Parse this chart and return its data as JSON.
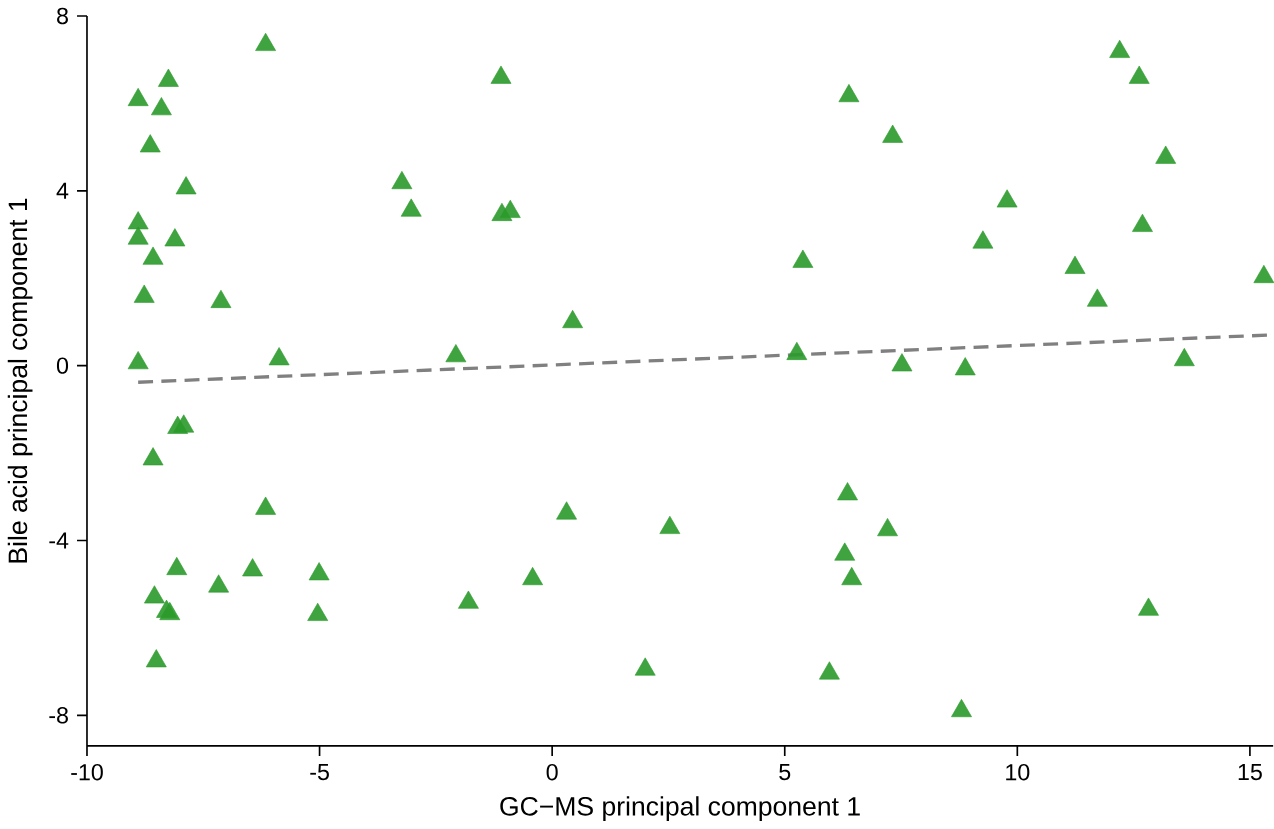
{
  "chart_data": {
    "type": "scatter",
    "xlabel": "GC−MS principal component 1",
    "ylabel": "Bile acid principal component 1",
    "xlim": [
      -10,
      15.5
    ],
    "ylim": [
      -8.7,
      8
    ],
    "xticks": [
      -10,
      -5,
      0,
      5,
      10,
      15
    ],
    "yticks": [
      -8,
      -4,
      0,
      4,
      8
    ],
    "grid": false,
    "series": [
      {
        "marker": "triangle",
        "color": "#2a9a2a",
        "x": [
          -8.9,
          -6.16,
          -8.25,
          -8.4,
          -8.64,
          -7.87,
          -8.9,
          -8.9,
          -8.11,
          -8.58,
          -8.77,
          -7.12,
          -8.9,
          -5.87,
          -8.05,
          -7.92,
          -8.58,
          -6.16,
          -8.07,
          -6.44,
          -7.17,
          -5.01,
          -5.04,
          -8.55,
          -8.29,
          -8.22,
          -8.51,
          -3.23,
          -3.03,
          -1.1,
          -1.08,
          -0.9,
          -2.07,
          0.44,
          0.31,
          -0.42,
          -1.8,
          2.53,
          2.0,
          5.39,
          5.26,
          6.38,
          7.32,
          7.52,
          6.35,
          6.29,
          6.44,
          7.21,
          5.96,
          8.8,
          8.88,
          9.26,
          9.78,
          11.24,
          11.72,
          12.2,
          12.62,
          13.19,
          12.69,
          12.82,
          13.59,
          15.3
        ],
        "values": [
          6.08,
          7.34,
          6.52,
          5.87,
          5.02,
          4.06,
          3.26,
          2.91,
          2.87,
          2.45,
          1.58,
          1.46,
          0.06,
          0.15,
          -1.42,
          -1.39,
          -2.14,
          -3.27,
          -4.65,
          -4.68,
          -5.05,
          -4.77,
          -5.7,
          -5.3,
          -5.63,
          -5.68,
          -6.76,
          4.18,
          3.55,
          6.59,
          3.45,
          3.52,
          0.22,
          1.0,
          -3.38,
          -4.88,
          -5.42,
          -3.71,
          -6.95,
          2.38,
          0.27,
          6.17,
          5.24,
          0.01,
          -2.94,
          -4.32,
          -4.88,
          -3.76,
          -7.04,
          -7.9,
          -0.08,
          2.82,
          3.76,
          2.24,
          1.49,
          7.18,
          6.59,
          4.76,
          3.2,
          -5.58,
          0.13,
          2.03
        ]
      },
      {
        "type": "line",
        "color": "#808080",
        "line_style": "dashed",
        "marker": "none",
        "x": [
          -8.9,
          15.4
        ],
        "values": [
          -0.38,
          0.7
        ]
      }
    ]
  }
}
